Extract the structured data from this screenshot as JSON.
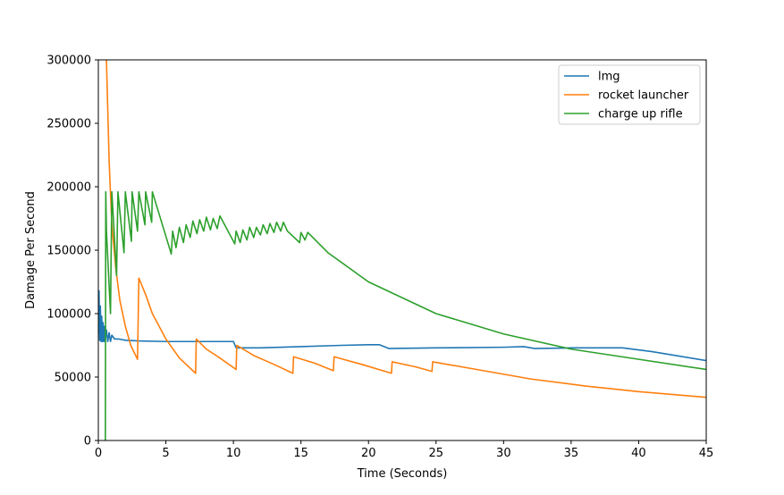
{
  "chart_data": {
    "type": "line",
    "title": "",
    "xlabel": "Time (Seconds)",
    "ylabel": "Damage Per Second",
    "xlim": [
      0,
      45
    ],
    "ylim": [
      0,
      300000
    ],
    "xticks": [
      0,
      5,
      10,
      15,
      20,
      25,
      30,
      35,
      40,
      45
    ],
    "yticks": [
      0,
      50000,
      100000,
      150000,
      200000,
      250000,
      300000
    ],
    "grid": false,
    "legend_position": "top-right",
    "series": [
      {
        "name": "lmg",
        "color": "#1f77b4",
        "x": [
          0,
          0.05,
          0.1,
          0.15,
          0.2,
          0.25,
          0.3,
          0.35,
          0.4,
          0.45,
          0.5,
          0.6,
          0.7,
          0.8,
          0.9,
          1.0,
          1.2,
          1.5,
          2,
          3,
          5,
          7,
          10,
          10.2,
          12,
          15,
          18,
          20,
          20.8,
          21.5,
          25,
          30,
          31.5,
          32.3,
          35,
          38.8,
          41,
          43,
          45
        ],
        "y": [
          84000,
          118000,
          79000,
          106000,
          78000,
          98000,
          78000,
          93000,
          78000,
          90000,
          78000,
          87000,
          78000,
          85000,
          78000,
          83000,
          80000,
          80000,
          79000,
          78500,
          78000,
          78000,
          78000,
          73000,
          73000,
          74000,
          75000,
          75500,
          75500,
          72500,
          73000,
          73500,
          74000,
          72500,
          73000,
          73000,
          70000,
          66500,
          63000
        ]
      },
      {
        "name": "rocket launcher",
        "color": "#ff7f0e",
        "x": [
          0.6,
          0.8,
          1.0,
          1.3,
          1.6,
          2.0,
          2.4,
          2.9,
          3.0,
          3.5,
          4.0,
          5.0,
          6.0,
          7.2,
          7.25,
          8.0,
          9.0,
          10.2,
          10.25,
          11.5,
          13.0,
          14.4,
          14.45,
          16.0,
          17.4,
          17.45,
          19.5,
          21.7,
          21.75,
          23.5,
          24.7,
          24.75,
          28.0,
          32.0,
          36.0,
          40.0,
          45.0
        ],
        "y": [
          300000,
          220000,
          170000,
          135000,
          110000,
          90000,
          75000,
          64000,
          128000,
          115000,
          100000,
          80000,
          65000,
          53000,
          80000,
          72000,
          65000,
          56000,
          75000,
          67000,
          60000,
          53000,
          66000,
          61000,
          55000,
          66000,
          60000,
          53000,
          62000,
          58000,
          54500,
          62000,
          56000,
          48500,
          43000,
          38500,
          34000
        ]
      },
      {
        "name": "charge up rifle",
        "color": "#2ca02c",
        "x": [
          0.5,
          0.52,
          0.55,
          0.6,
          0.9,
          1.0,
          1.35,
          1.45,
          1.9,
          2.0,
          2.45,
          2.5,
          2.9,
          3.0,
          3.45,
          3.5,
          3.95,
          4.0,
          5.4,
          5.5,
          5.75,
          6.0,
          6.3,
          6.5,
          6.8,
          7.0,
          7.3,
          7.5,
          7.8,
          8.0,
          8.3,
          8.5,
          8.8,
          9.0,
          10.1,
          10.2,
          10.5,
          10.7,
          11.0,
          11.2,
          11.5,
          11.7,
          12.0,
          12.2,
          12.5,
          12.7,
          13.0,
          13.2,
          13.5,
          13.7,
          14.0,
          14.9,
          15.0,
          15.3,
          15.5,
          17.0,
          20.0,
          25.0,
          30.0,
          35.0,
          40.0,
          45.0
        ],
        "y": [
          0,
          0,
          196000,
          165000,
          100000,
          196000,
          130000,
          196000,
          148000,
          196000,
          157000,
          196000,
          165000,
          196000,
          170000,
          196000,
          172000,
          196000,
          147000,
          165000,
          152000,
          168000,
          156000,
          170000,
          160000,
          173000,
          163000,
          174000,
          165000,
          176000,
          166000,
          175000,
          167000,
          177000,
          155000,
          165000,
          156000,
          166000,
          158000,
          168000,
          160000,
          168000,
          162000,
          170000,
          163000,
          171000,
          164000,
          172000,
          165000,
          172000,
          165000,
          156000,
          164000,
          158000,
          164000,
          148000,
          125000,
          100000,
          84000,
          72000,
          64000,
          56000
        ]
      }
    ]
  }
}
